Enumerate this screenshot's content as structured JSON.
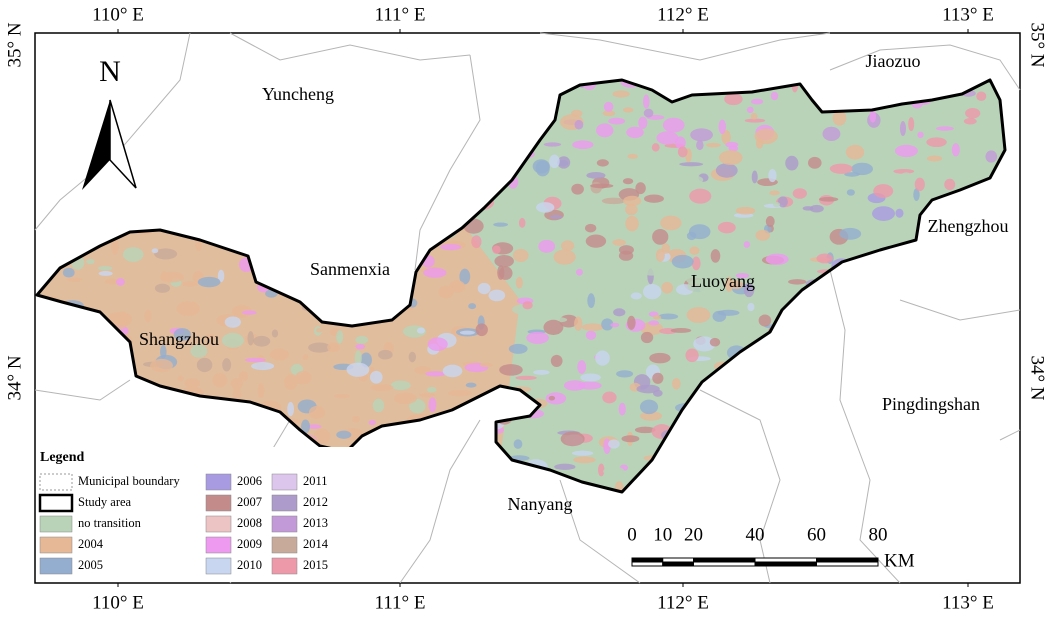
{
  "map": {
    "graticule": {
      "lon_labels": [
        "110° E",
        "111° E",
        "112° E",
        "113° E"
      ],
      "lat_labels": [
        "35° N",
        "34° N"
      ]
    },
    "north_arrow": "N",
    "places": [
      "Yuncheng",
      "Jiaozuo",
      "Zhengzhou",
      "Sanmenxia",
      "Luoyang",
      "Shangzhou",
      "Pingdingshan",
      "Nanyang"
    ],
    "legend": {
      "title": "Legend",
      "boundary_items": [
        "Municipal boundary",
        "Study area"
      ],
      "classes": [
        {
          "label": "no transition",
          "color": "#b9d3b8"
        },
        {
          "label": "2004",
          "color": "#e6b896"
        },
        {
          "label": "2005",
          "color": "#94aed0"
        },
        {
          "label": "2006",
          "color": "#a99be2"
        },
        {
          "label": "2007",
          "color": "#c48b8b"
        },
        {
          "label": "2008",
          "color": "#ecc4c4"
        },
        {
          "label": "2009",
          "color": "#ee9af0"
        },
        {
          "label": "2010",
          "color": "#c9d6f0"
        },
        {
          "label": "2011",
          "color": "#ddc6ec"
        },
        {
          "label": "2012",
          "color": "#ad9bcb"
        },
        {
          "label": "2013",
          "color": "#c39ad8"
        },
        {
          "label": "2014",
          "color": "#c8aa9a"
        },
        {
          "label": "2015",
          "color": "#ee99aa"
        }
      ]
    },
    "scale_bar": {
      "ticks": [
        0,
        10,
        20,
        40,
        60,
        80
      ],
      "unit": "KM"
    }
  }
}
